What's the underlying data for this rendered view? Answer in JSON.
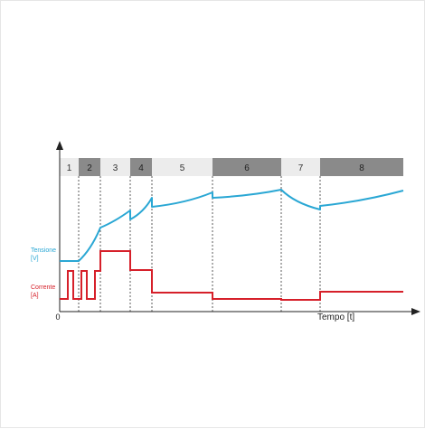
{
  "phases": [
    {
      "label": "1",
      "style": "light"
    },
    {
      "label": "2",
      "style": "dark"
    },
    {
      "label": "3",
      "style": "light"
    },
    {
      "label": "4",
      "style": "dark"
    },
    {
      "label": "5",
      "style": "light"
    },
    {
      "label": "6",
      "style": "dark"
    },
    {
      "label": "7",
      "style": "light"
    },
    {
      "label": "8",
      "style": "dark"
    }
  ],
  "axes": {
    "origin_label": "0",
    "time_label": "Tempo [t]"
  },
  "traces": {
    "voltage": {
      "label_line1": "Tensione",
      "label_line2": "[V]",
      "color": "#2aa7d4"
    },
    "current": {
      "label_line1": "Corrente",
      "label_line2": "[A]",
      "color": "#d6202a"
    }
  },
  "colors": {
    "phase_light": "#ececec",
    "phase_dark": "#8a8a8a",
    "phase_text_light": "#333333",
    "phase_text_dark": "#222222",
    "axis": "#222222",
    "divider": "#333333"
  }
}
